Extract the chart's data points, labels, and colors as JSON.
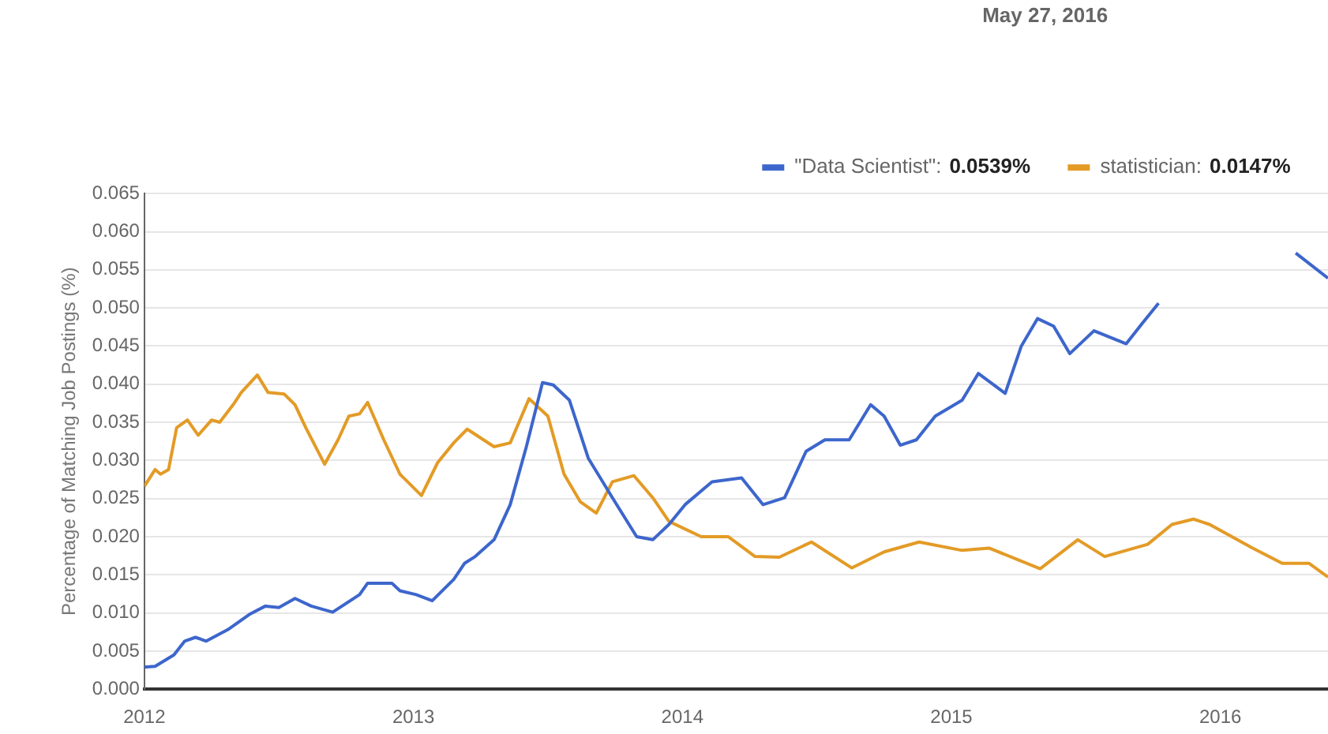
{
  "chart_data": {
    "type": "line",
    "ylabel": "Percentage of Matching Job Postings (%)",
    "legend_title": "May 27, 2016",
    "legend": "top right",
    "grid": "y",
    "marker": "none",
    "line_style": "solid",
    "xlim": [
      2012,
      2016.4
    ],
    "xticks": [
      2012,
      2013,
      2014,
      2015,
      2016
    ],
    "ylim": [
      0,
      0.065
    ],
    "yticks": [
      {
        "value": 0,
        "label": "0.000"
      },
      0.005,
      {
        "value": 0.01,
        "label": "0.010"
      },
      0.015,
      {
        "value": 0.02,
        "label": "0.020"
      },
      0.025,
      {
        "value": 0.03,
        "label": "0.030"
      },
      0.035,
      {
        "value": 0.04,
        "label": "0.040"
      },
      0.045,
      {
        "value": 0.05,
        "label": "0.050"
      },
      0.055,
      {
        "value": 0.06,
        "label": "0.060"
      },
      0.065
    ],
    "annotations": [
      "0.0539%",
      "0.0147%"
    ],
    "series": [
      {
        "name": "\"Data Scientist\":",
        "color": "#3d66cc",
        "x": [
          2012.0,
          2012.04,
          2012.11,
          2012.15,
          2012.19,
          2012.23,
          2012.31,
          2012.39,
          2012.45,
          2012.5,
          2012.56,
          2012.62,
          2012.7,
          2012.8,
          2012.83,
          2012.92,
          2012.95,
          2013.01,
          2013.07,
          2013.15,
          2013.19,
          2013.23,
          2013.3,
          2013.36,
          2013.42,
          2013.48,
          2013.52,
          2013.58,
          2013.65,
          2013.74,
          2013.83,
          2013.89,
          2013.95,
          2014.01,
          2014.11,
          2014.22,
          2014.3,
          2014.38,
          2014.46,
          2014.53,
          2014.62,
          2014.7,
          2014.75,
          2014.81,
          2014.87,
          2014.94,
          2015.04,
          2015.1,
          2015.2,
          2015.26,
          2015.32,
          2015.38,
          2015.44,
          2015.53,
          2015.65,
          2015.71,
          2015.77,
          2015.85,
          2016.0,
          2016.15,
          2016.28,
          2016.4
        ],
        "values": [
          0.0029,
          0.003,
          0.0045,
          0.0063,
          0.0068,
          0.0063,
          0.0078,
          0.0098,
          0.0109,
          0.0107,
          0.0119,
          0.0109,
          0.0101,
          0.0124,
          0.0139,
          0.0139,
          0.0129,
          0.0124,
          0.0116,
          0.0144,
          0.0165,
          0.0174,
          0.0196,
          0.0242,
          0.0318,
          0.0402,
          0.0399,
          0.0379,
          0.0303,
          0.0251,
          0.02,
          0.0196,
          0.0216,
          0.0242,
          0.0272,
          0.0277,
          0.0242,
          0.0251,
          0.0312,
          0.0327,
          0.0327,
          0.0373,
          0.0358,
          0.032,
          0.0327,
          0.0358,
          0.0379,
          0.0414,
          0.0388,
          0.045,
          0.0486,
          0.0476,
          0.044,
          0.047,
          0.0453,
          0.048,
          0.0506,
          null,
          null,
          null,
          0.0572,
          0.0539
        ]
      },
      {
        "name": "statistician:",
        "color": "#e39b26",
        "x": [
          2012.0,
          2012.04,
          2012.06,
          2012.09,
          2012.12,
          2012.16,
          2012.2,
          2012.25,
          2012.28,
          2012.33,
          2012.36,
          2012.42,
          2012.46,
          2012.52,
          2012.56,
          2012.6,
          2012.67,
          2012.72,
          2012.76,
          2012.8,
          2012.83,
          2012.89,
          2012.95,
          2013.03,
          2013.09,
          2013.15,
          2013.2,
          2013.3,
          2013.36,
          2013.43,
          2013.5,
          2013.56,
          2013.62,
          2013.68,
          2013.74,
          2013.82,
          2013.89,
          2013.95,
          2014.07,
          2014.17,
          2014.27,
          2014.36,
          2014.48,
          2014.63,
          2014.75,
          2014.88,
          2015.04,
          2015.14,
          2015.33,
          2015.47,
          2015.57,
          2015.73,
          2015.82,
          2015.9,
          2015.96,
          2016.12,
          2016.23,
          2016.33,
          2016.4
        ],
        "values": [
          0.0266,
          0.0288,
          0.0282,
          0.0288,
          0.0343,
          0.0353,
          0.0333,
          0.0353,
          0.035,
          0.0373,
          0.0389,
          0.0412,
          0.0389,
          0.0387,
          0.0373,
          0.0343,
          0.0295,
          0.0327,
          0.0358,
          0.0361,
          0.0376,
          0.0327,
          0.0282,
          0.0254,
          0.0297,
          0.0323,
          0.0341,
          0.0318,
          0.0323,
          0.0381,
          0.0358,
          0.0282,
          0.0246,
          0.0231,
          0.0272,
          0.028,
          0.0251,
          0.022,
          0.02,
          0.02,
          0.0174,
          0.0173,
          0.0193,
          0.0159,
          0.018,
          0.0193,
          0.0182,
          0.0185,
          0.0158,
          0.0196,
          0.0174,
          0.019,
          0.0216,
          0.0223,
          0.0216,
          0.0185,
          0.0165,
          0.0165,
          0.0147
        ]
      }
    ]
  }
}
